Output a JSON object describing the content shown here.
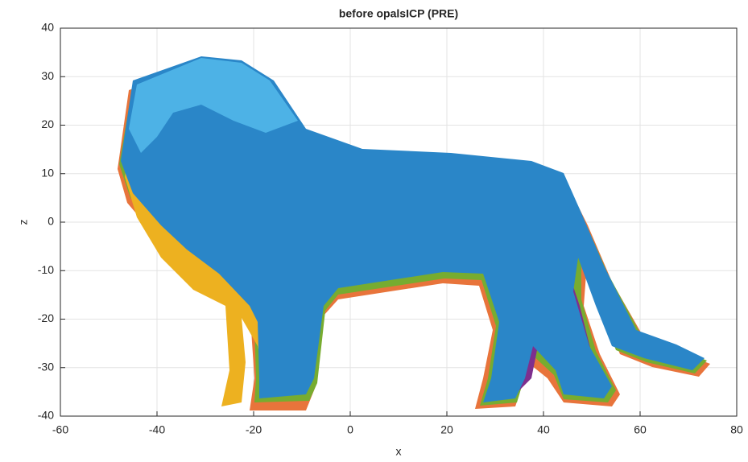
{
  "chart_data": {
    "type": "scatter",
    "title": "before opalsICP (PRE)",
    "x_label": "x",
    "y_label": "z",
    "xlim": [
      -60,
      80
    ],
    "ylim": [
      -40,
      40
    ],
    "xticks": [
      -60,
      -40,
      -20,
      0,
      20,
      40,
      60,
      80
    ],
    "yticks": [
      -40,
      -30,
      -20,
      -10,
      0,
      10,
      20,
      30,
      40
    ],
    "grid": true
  }
}
